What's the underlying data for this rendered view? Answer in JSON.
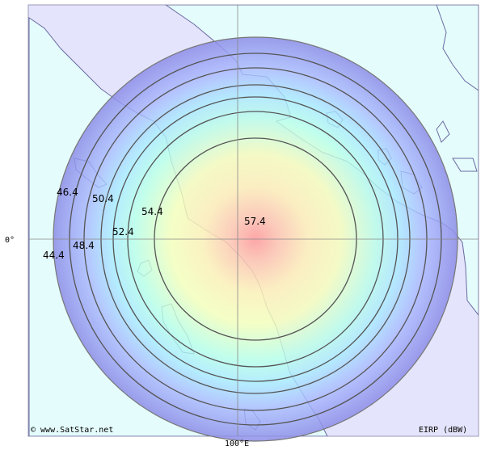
{
  "map": {
    "contours": [
      {
        "value": "44.4"
      },
      {
        "value": "46.4"
      },
      {
        "value": "48.4"
      },
      {
        "value": "50.4"
      },
      {
        "value": "52.4"
      },
      {
        "value": "54.4"
      },
      {
        "value": "57.4"
      }
    ],
    "axis": {
      "latitude_label": "0°",
      "longitude_label": "100°E"
    },
    "credit": "© www.SatStar.net",
    "unit_label": "EIRP (dBW)",
    "colors": {
      "sea": "#e4e4fc",
      "land": "#e4fcfc",
      "coast": "#6a6aa0",
      "contour_line": "#555555"
    }
  }
}
